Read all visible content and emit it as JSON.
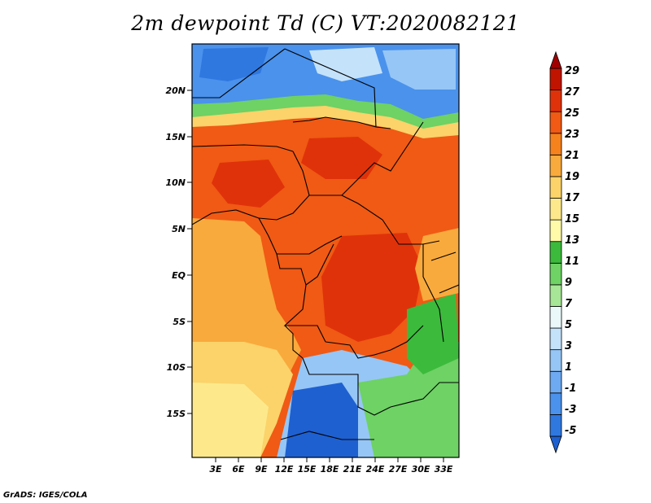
{
  "title": "2m dewpoint Td (C) VT:2020082121",
  "credit": "GrADS: IGES/COLA",
  "map": {
    "lat_labels": [
      "20N",
      "15N",
      "10N",
      "5N",
      "EQ",
      "5S",
      "10S",
      "15S"
    ],
    "lon_labels": [
      "3E",
      "6E",
      "9E",
      "12E",
      "15E",
      "18E",
      "21E",
      "24E",
      "27E",
      "30E",
      "33E"
    ],
    "region": "Central Africa"
  },
  "colorbar": {
    "levels": [
      "-5",
      "-3",
      "-1",
      "1",
      "3",
      "5",
      "7",
      "9",
      "11",
      "13",
      "15",
      "17",
      "19",
      "21",
      "23",
      "25",
      "27",
      "29"
    ],
    "colors": [
      "#1e60d0",
      "#2f78e0",
      "#4a92ec",
      "#6eaaf2",
      "#96c6f6",
      "#c4e2fa",
      "#eaf8fa",
      "#a6e696",
      "#6ed264",
      "#3cba3c",
      "#fffaaa",
      "#fde98c",
      "#fbd36a",
      "#f9aa3c",
      "#f6821e",
      "#f05a14",
      "#e0320a",
      "#c01400",
      "#a00000"
    ]
  },
  "palette": {
    "sahara_blue": "#5a9ae8",
    "sahel_green": "#6ed264",
    "deep_red": "#e0320a",
    "orange": "#f6821e",
    "light_orange": "#fbd36a",
    "pale_yellow": "#fde98c"
  }
}
